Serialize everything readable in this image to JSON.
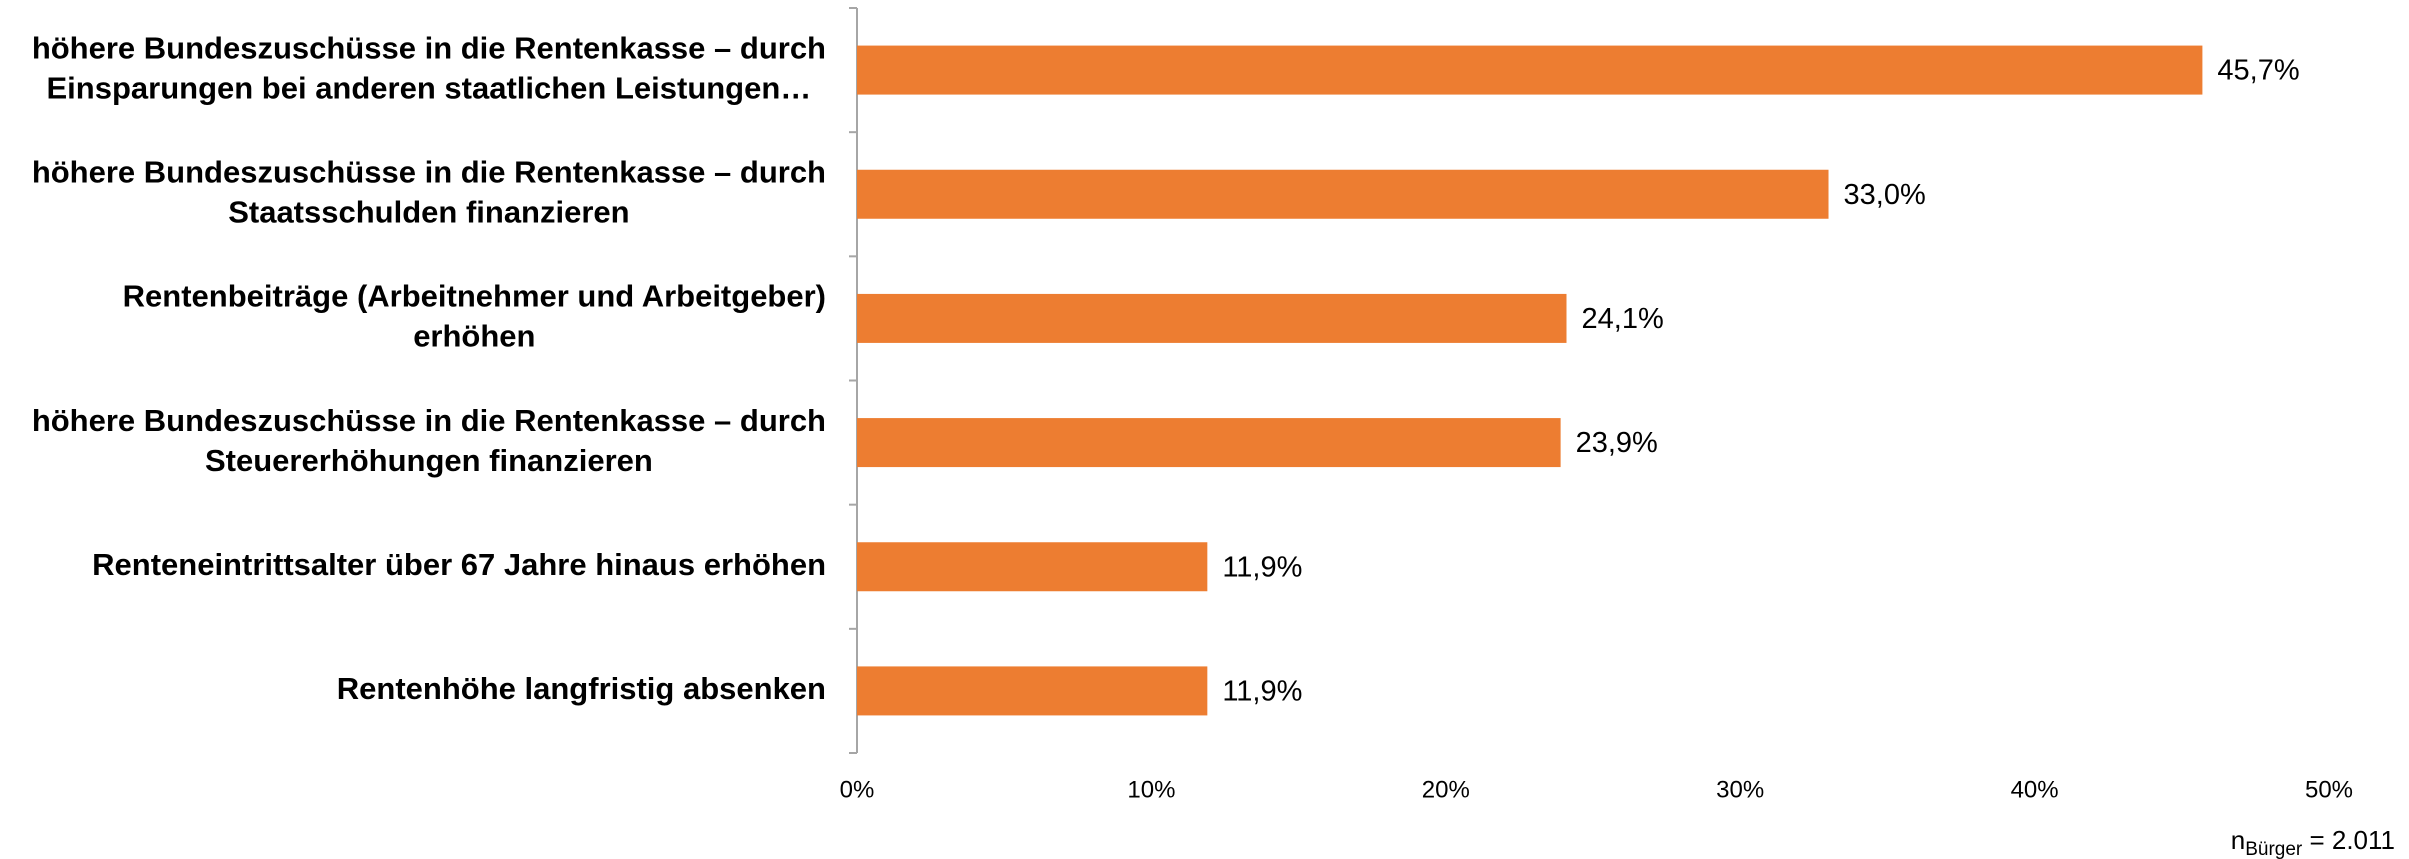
{
  "chart_data": {
    "type": "barh",
    "categories": [
      [
        "höhere Bundeszuschüsse in die Rentenkasse – durch",
        "Einsparungen bei anderen staatlichen Leistungen…"
      ],
      [
        "höhere Bundeszuschüsse in die Rentenkasse – durch",
        "Staatsschulden finanzieren"
      ],
      [
        "Rentenbeiträge (Arbeitnehmer und Arbeitgeber)",
        "erhöhen"
      ],
      [
        "höhere Bundeszuschüsse in die Rentenkasse – durch",
        "Steuererhöhungen finanzieren"
      ],
      [
        "Renteneintrittsalter über 67 Jahre hinaus erhöhen"
      ],
      [
        "Rentenhöhe langfristig absenken"
      ]
    ],
    "values": [
      45.7,
      33.0,
      24.1,
      23.9,
      11.9,
      11.9
    ],
    "value_labels": [
      "45,7%",
      "33,0%",
      "24,1%",
      "23,9%",
      "11,9%",
      "11,9%"
    ],
    "color": "#ED7D31",
    "xlim": [
      0,
      50
    ],
    "xticks": [
      {
        "value": 0,
        "label": "0%"
      },
      {
        "value": 10,
        "label": "10%"
      },
      {
        "value": 20,
        "label": "20%"
      },
      {
        "value": 30,
        "label": "30%"
      },
      {
        "value": 40,
        "label": "40%"
      },
      {
        "value": 50,
        "label": "50%"
      }
    ],
    "note": {
      "base": "n",
      "sub": "Bürger",
      "rest": " = 2.011"
    }
  }
}
